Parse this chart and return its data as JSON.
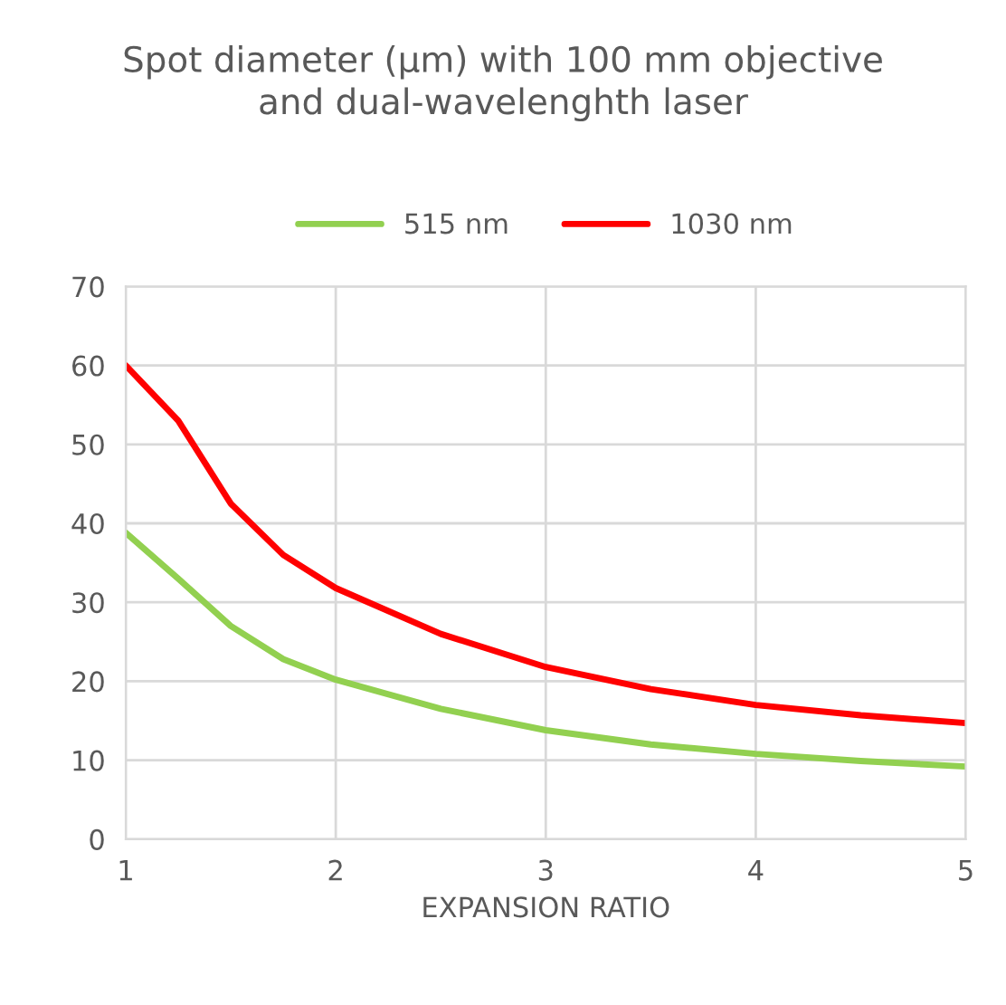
{
  "chart_data": {
    "type": "line",
    "title": "Spot diameter (µm) with 100 mm objective\nand dual-wavelenghth laser",
    "xlabel": "EXPANSION RATIO",
    "x": [
      1,
      1.25,
      1.5,
      1.75,
      2,
      2.5,
      3,
      3.5,
      4,
      4.5,
      5
    ],
    "series": [
      {
        "name": "515 nm",
        "color": "#92d050",
        "values": [
          38.8,
          33,
          27,
          22.8,
          20.2,
          16.5,
          13.8,
          12,
          10.8,
          9.9,
          9.2
        ]
      },
      {
        "name": "1030 nm",
        "color": "#ff0000",
        "values": [
          60,
          53,
          42.5,
          36,
          31.8,
          26,
          21.8,
          19,
          17,
          15.7,
          14.7
        ]
      }
    ],
    "xlim": [
      1,
      5
    ],
    "xticks": [
      1,
      2,
      3,
      4,
      5
    ],
    "ylim": [
      0,
      70
    ],
    "yticks": [
      0,
      10,
      20,
      30,
      40,
      50,
      60,
      70
    ],
    "grid": true,
    "legend": "top",
    "marker": "none",
    "line_style": "solid"
  }
}
